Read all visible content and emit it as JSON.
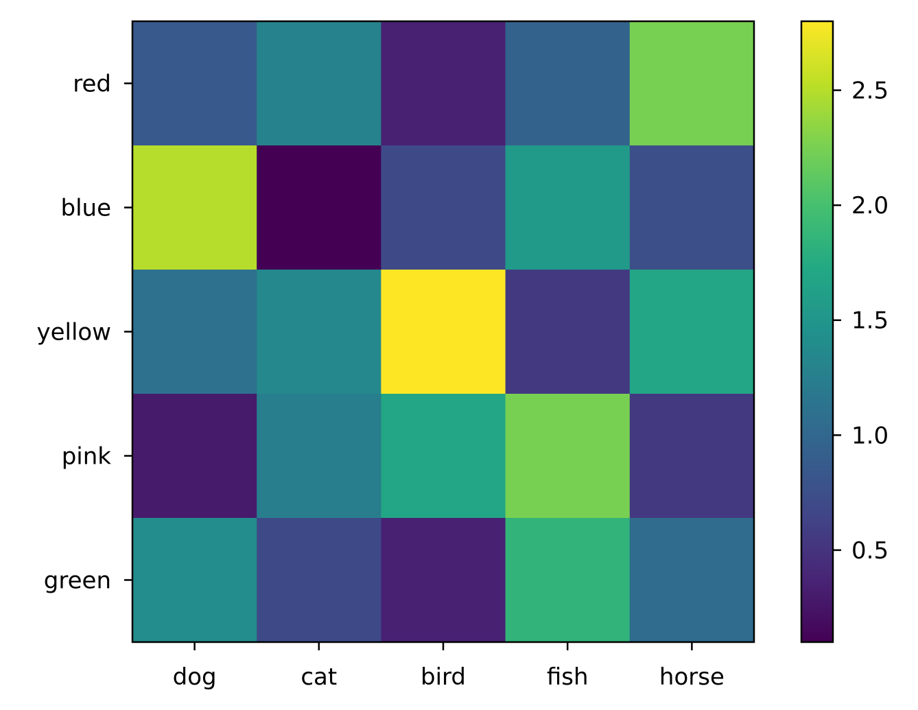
{
  "chart_data": {
    "type": "heatmap",
    "title": "",
    "xlabel": "",
    "ylabel": "",
    "x_categories": [
      "dog",
      "cat",
      "bird",
      "fish",
      "horse"
    ],
    "y_categories": [
      "red",
      "blue",
      "yellow",
      "pink",
      "green"
    ],
    "values": [
      [
        0.85,
        1.3,
        0.35,
        0.95,
        2.25
      ],
      [
        2.5,
        0.1,
        0.7,
        1.55,
        0.75
      ],
      [
        1.1,
        1.35,
        2.8,
        0.55,
        1.7
      ],
      [
        0.3,
        1.25,
        1.7,
        2.25,
        0.55
      ],
      [
        1.4,
        0.7,
        0.35,
        1.85,
        1.05
      ]
    ],
    "colorbar": {
      "min": 0.1,
      "max": 2.8,
      "ticks": [
        0.5,
        1.0,
        1.5,
        2.0,
        2.5
      ],
      "tick_labels": [
        "0.5",
        "1.0",
        "1.5",
        "2.0",
        "2.5"
      ]
    },
    "colormap": "viridis",
    "grid": false
  }
}
